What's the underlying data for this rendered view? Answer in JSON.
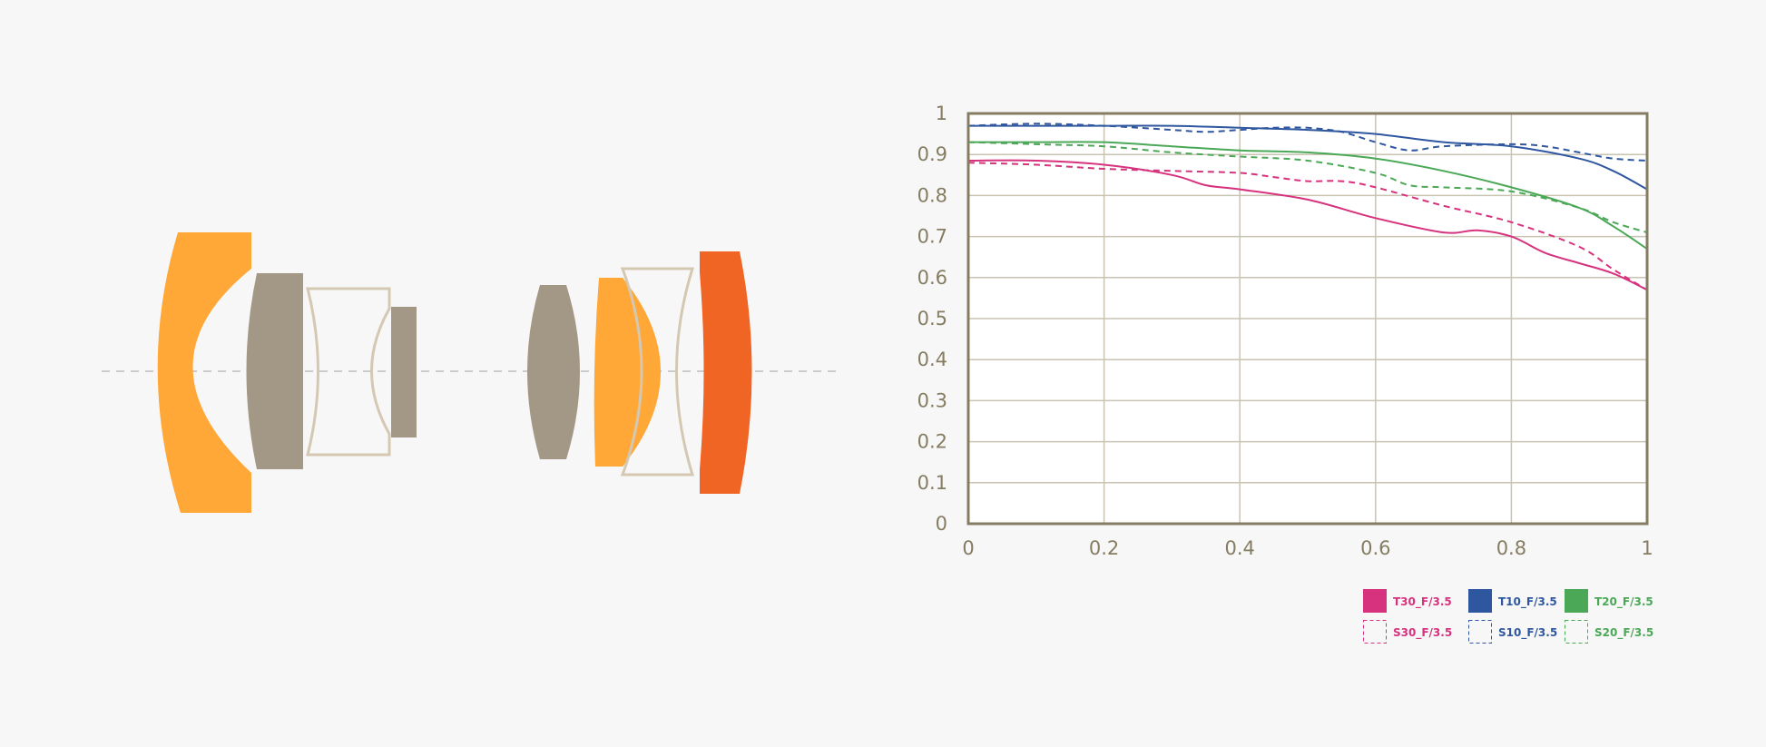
{
  "colors": {
    "background": "#f7f7f7",
    "frame": "#857c61",
    "grid": "#c9c4b2",
    "lens_orange": "#ffa737",
    "lens_gray": "#a39785",
    "lens_outline": "#d4c8b3",
    "lens_red_orange": "#f06424",
    "axis_dashes": "#bdbdbd"
  },
  "lens_diagram": {
    "elements": [
      "meniscus-orange",
      "solid-gray",
      "outline-concave",
      "small-gray",
      "biconvex-gray",
      "convex-orange",
      "outline-biconcave",
      "meniscus-red-orange"
    ]
  },
  "chart_data": {
    "type": "line",
    "xlim": [
      0,
      1
    ],
    "ylim": [
      0,
      1
    ],
    "x_ticks": [
      "0",
      "0.2",
      "0.4",
      "0.6",
      "0.8",
      "1"
    ],
    "y_ticks": [
      "0",
      "0.1",
      "0.2",
      "0.3",
      "0.4",
      "0.5",
      "0.6",
      "0.7",
      "0.8",
      "0.9",
      "1"
    ],
    "grid": true,
    "legend_position": "bottom-right",
    "series": [
      {
        "name": "T30_F/3.5",
        "color": "#d7327e",
        "dash": false,
        "x": [
          0,
          0.1,
          0.2,
          0.3,
          0.35,
          0.4,
          0.5,
          0.6,
          0.7,
          0.75,
          0.8,
          0.85,
          0.9,
          0.95,
          1
        ],
        "y": [
          0.885,
          0.885,
          0.875,
          0.85,
          0.825,
          0.815,
          0.79,
          0.745,
          0.71,
          0.715,
          0.7,
          0.66,
          0.635,
          0.61,
          0.57
        ]
      },
      {
        "name": "T10_F/3.5",
        "color": "#2f57a0",
        "dash": false,
        "x": [
          0,
          0.1,
          0.2,
          0.3,
          0.4,
          0.5,
          0.6,
          0.7,
          0.8,
          0.9,
          0.95,
          1
        ],
        "y": [
          0.97,
          0.97,
          0.97,
          0.97,
          0.965,
          0.96,
          0.95,
          0.93,
          0.92,
          0.89,
          0.86,
          0.815
        ]
      },
      {
        "name": "T20_F/3.5",
        "color": "#4aa856",
        "dash": false,
        "x": [
          0,
          0.1,
          0.2,
          0.3,
          0.4,
          0.5,
          0.6,
          0.7,
          0.8,
          0.9,
          0.95,
          1
        ],
        "y": [
          0.93,
          0.93,
          0.93,
          0.92,
          0.91,
          0.905,
          0.89,
          0.86,
          0.82,
          0.77,
          0.725,
          0.67
        ]
      },
      {
        "name": "S30_F/3.5",
        "color": "#d7327e",
        "dash": true,
        "x": [
          0,
          0.1,
          0.2,
          0.3,
          0.4,
          0.45,
          0.5,
          0.55,
          0.6,
          0.7,
          0.8,
          0.9,
          0.95,
          1
        ],
        "y": [
          0.88,
          0.875,
          0.865,
          0.86,
          0.855,
          0.845,
          0.835,
          0.835,
          0.82,
          0.775,
          0.735,
          0.675,
          0.62,
          0.57
        ]
      },
      {
        "name": "S10_F/3.5",
        "color": "#2f57a0",
        "dash": true,
        "x": [
          0,
          0.1,
          0.2,
          0.3,
          0.35,
          0.4,
          0.45,
          0.5,
          0.55,
          0.6,
          0.65,
          0.7,
          0.8,
          0.85,
          0.9,
          0.95,
          1
        ],
        "y": [
          0.97,
          0.975,
          0.97,
          0.96,
          0.955,
          0.96,
          0.965,
          0.965,
          0.955,
          0.93,
          0.91,
          0.92,
          0.925,
          0.92,
          0.905,
          0.89,
          0.885
        ]
      },
      {
        "name": "S20_F/3.5",
        "color": "#4aa856",
        "dash": true,
        "x": [
          0,
          0.1,
          0.2,
          0.3,
          0.4,
          0.5,
          0.6,
          0.65,
          0.7,
          0.8,
          0.9,
          0.95,
          1
        ],
        "y": [
          0.93,
          0.925,
          0.92,
          0.905,
          0.895,
          0.885,
          0.855,
          0.825,
          0.82,
          0.81,
          0.77,
          0.735,
          0.71
        ]
      }
    ]
  }
}
